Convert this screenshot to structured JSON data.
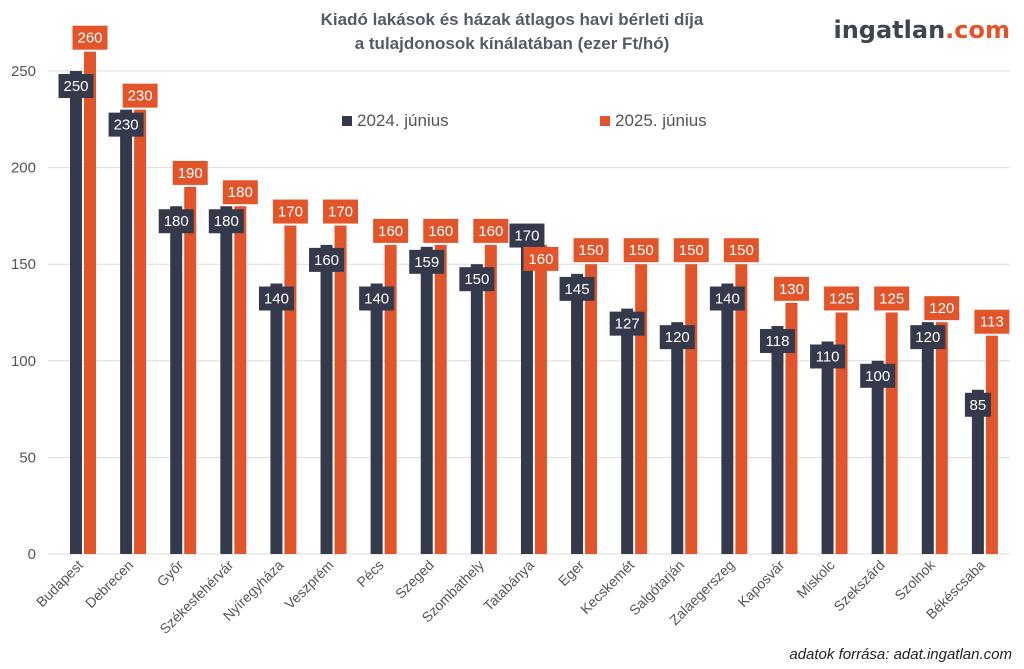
{
  "title_line1": "Kiadó lakások és házak átlagos havi bérleti díja",
  "title_line2": "a tulajdonosok kínálatában (ezer Ft/hó)",
  "logo": {
    "part1": "ingatlan",
    "part2": ".com"
  },
  "source": "adatok forrása: adat.ingatlan.com",
  "colors": {
    "series1": "#343a4c",
    "series2": "#e2552b"
  },
  "chart_data": {
    "type": "bar",
    "title": "Kiadó lakások és házak átlagos havi bérleti díja a tulajdonosok kínálatában (ezer Ft/hó)",
    "categories": [
      "Budapest",
      "Debrecen",
      "Győr",
      "Székesfehérvár",
      "Nyíregyháza",
      "Veszprém",
      "Pécs",
      "Szeged",
      "Szombathely",
      "Tatabánya",
      "Eger",
      "Kecskemét",
      "Salgótarján",
      "Zalaegerszeg",
      "Kaposvár",
      "Miskolc",
      "Szekszárd",
      "Szolnok",
      "Békéscsaba"
    ],
    "series": [
      {
        "name": "2024. június",
        "values": [
          250,
          230,
          180,
          180,
          140,
          160,
          140,
          159,
          150,
          170,
          145,
          127,
          120,
          140,
          118,
          110,
          100,
          120,
          85
        ]
      },
      {
        "name": "2025. június",
        "values": [
          260,
          230,
          190,
          180,
          170,
          170,
          160,
          160,
          160,
          160,
          150,
          150,
          150,
          150,
          130,
          125,
          125,
          120,
          113
        ]
      }
    ],
    "yticks": [
      0,
      50,
      100,
      150,
      200,
      250
    ],
    "ylim": [
      0,
      260
    ],
    "grid": true,
    "legend": "top-center"
  }
}
